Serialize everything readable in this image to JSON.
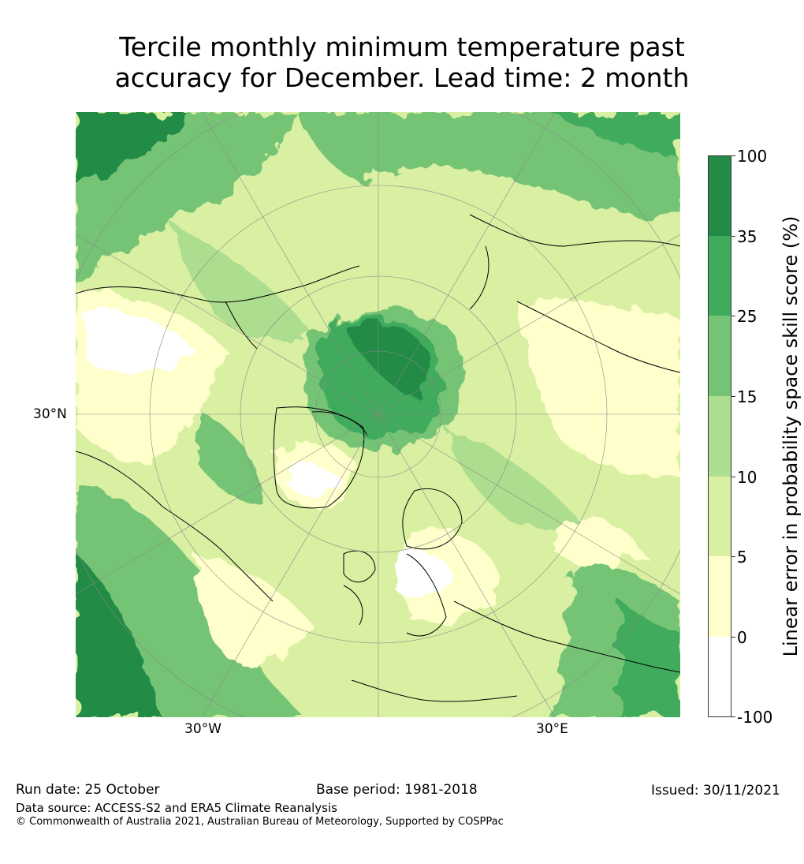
{
  "title": {
    "line1": "Tercile monthly minimum temperature past",
    "line2": "accuracy for December. Lead time: 2 month"
  },
  "map": {
    "projection": "north-polar-stereographic",
    "lat_label": "30°N",
    "lon_labels": [
      "30°W",
      "30°E"
    ],
    "region_icon": "arctic-map"
  },
  "colorbar": {
    "title": "Linear error in probability space skill score (%)",
    "levels": [
      "100",
      "35",
      "25",
      "15",
      "10",
      "5",
      "0",
      "-100"
    ],
    "colors": [
      "#238b45",
      "#41ab5d",
      "#74c476",
      "#addd8e",
      "#d9f0a3",
      "#ffffcc",
      "#ffffff"
    ]
  },
  "footer": {
    "run_date": "Run date: 25 October",
    "base_period": "Base period: 1981-2018",
    "issued": "Issued: 30/11/2021",
    "data_source": "Data source: ACCESS-S2 and ERA5 Climate Reanalysis",
    "copyright": "© Commonwealth of Australia 2021, Australian Bureau of Meteorology, Supported by COSPPac"
  }
}
